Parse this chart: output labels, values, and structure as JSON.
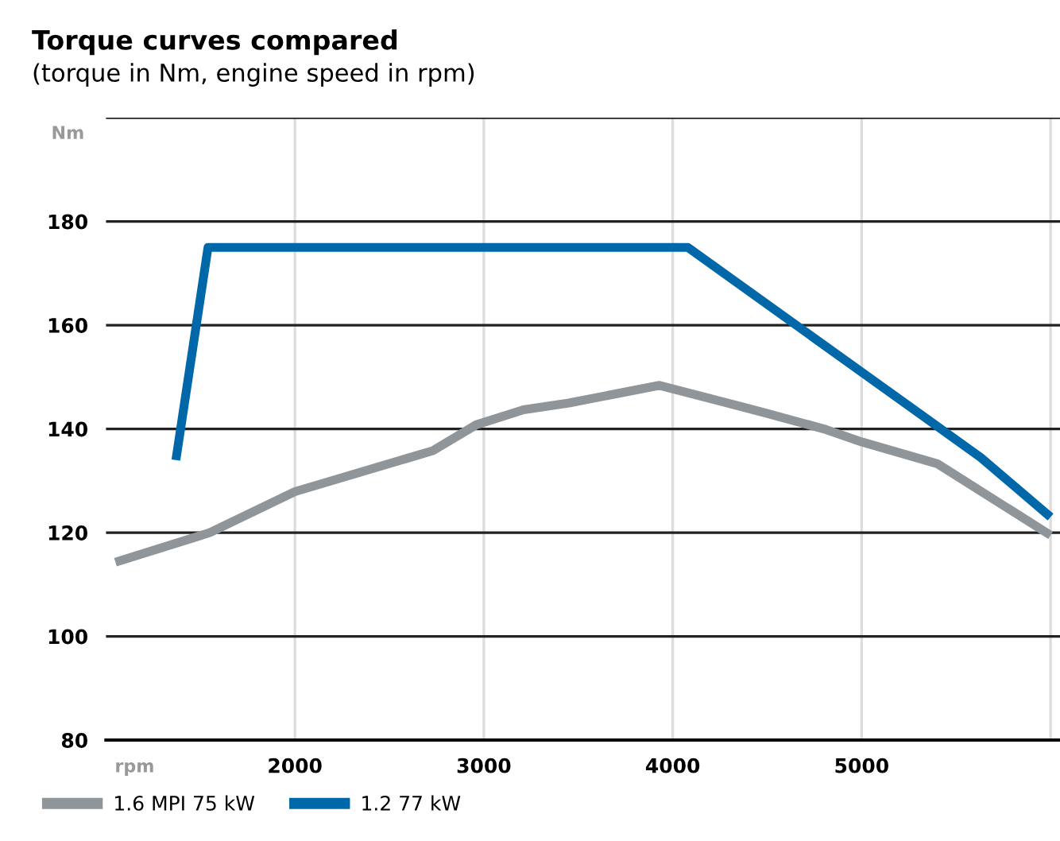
{
  "chart_data": {
    "type": "line",
    "title": "Torque curves compared",
    "subtitle": "(torque in Nm, engine speed in rpm)",
    "xlabel": "rpm",
    "ylabel": "Nm",
    "xlim": [
      1000,
      6050
    ],
    "xticks": [
      2000,
      3000,
      4000,
      5000,
      {
        "value": 6000,
        "label": null
      }
    ],
    "ylim": [
      80,
      200
    ],
    "yticks": [
      80,
      100,
      120,
      140,
      160,
      180,
      {
        "value": 200,
        "label": null
      }
    ],
    "grid": true,
    "legend": "bottom left",
    "series": [
      {
        "name": "1.6 MPI 75 kW",
        "color": "#8f9599",
        "x": [
          1050,
          1550,
          2000,
          2730,
          2960,
          3210,
          3450,
          3930,
          4500,
          4800,
          5000,
          5400,
          6000
        ],
        "values": [
          114.3,
          120,
          127.9,
          135.8,
          140.8,
          143.7,
          145,
          148.4,
          143,
          140,
          137.5,
          133.3,
          119.5
        ]
      },
      {
        "name": "1.2 77 kW",
        "color": "#0068a8",
        "x": [
          1370,
          1540,
          4080,
          5630,
          6000
        ],
        "values": [
          134,
          175,
          175,
          134.5,
          123
        ]
      }
    ]
  }
}
